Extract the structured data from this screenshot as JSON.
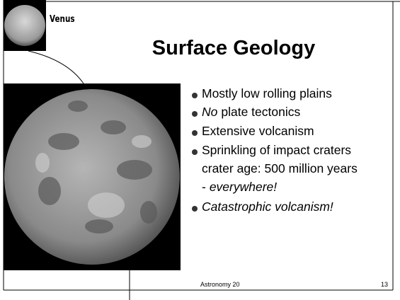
{
  "header": {
    "badge": "Venus",
    "title": "Surface Geology"
  },
  "bullets": [
    {
      "text": "Mostly low rolling plains"
    },
    {
      "italic": "No",
      "text": "plate tectonics"
    },
    {
      "text": "Extensive volcanism"
    },
    {
      "text": "Sprinkling of impact craters",
      "line2": "crater age: 500 million years",
      "line3_prefix": "-",
      "line3_italic": "everywhere!"
    },
    {
      "italic": "Catastrophic volcanism!"
    }
  ],
  "footer": {
    "course": "Astronomy 20",
    "page": "13"
  }
}
